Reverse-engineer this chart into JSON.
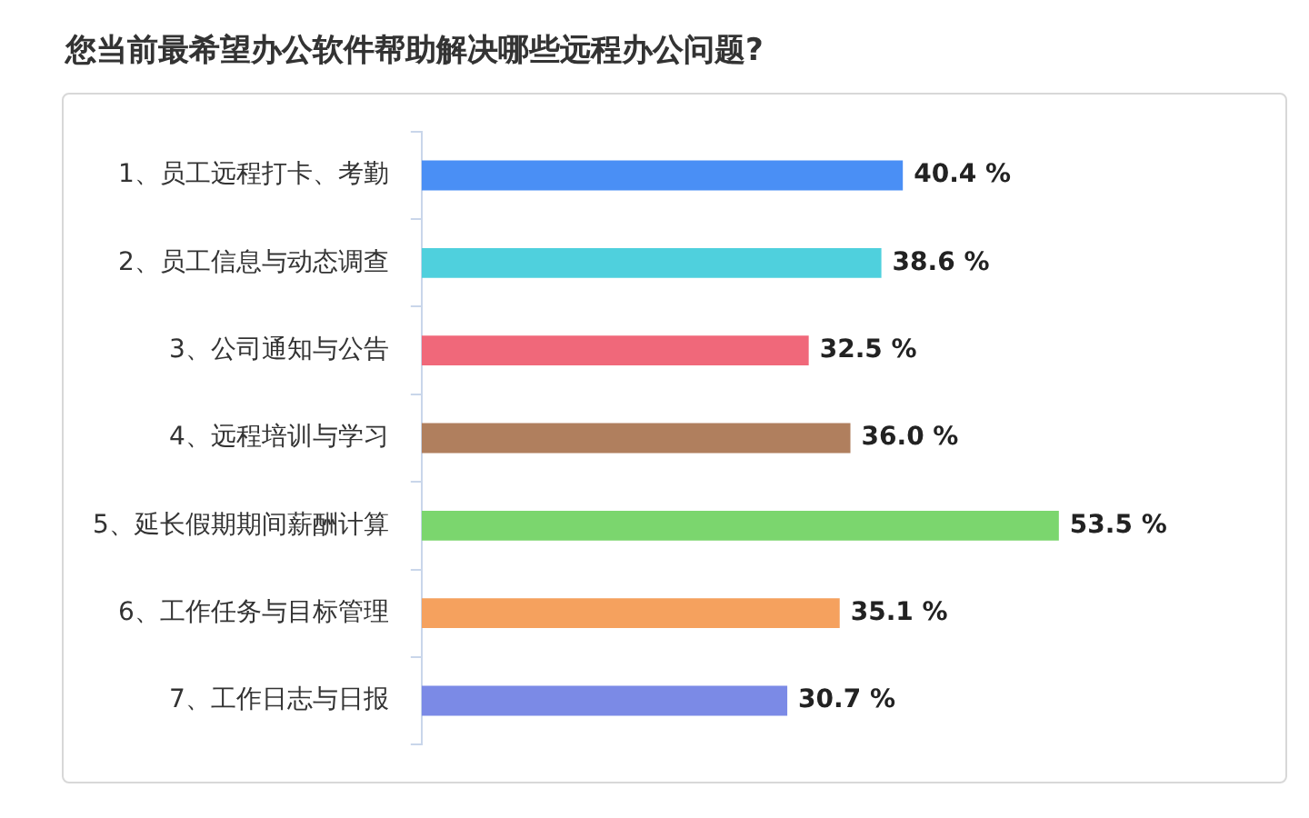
{
  "chart_data": {
    "type": "bar",
    "orientation": "horizontal",
    "title": "您当前最希望办公软件帮助解决哪些远程办公问题?",
    "categories": [
      "1、员工远程打卡、考勤",
      "2、员工信息与动态调查",
      "3、公司通知与公告",
      "4、远程培训与学习",
      "5、延长假期期间薪酬计算",
      "6、工作任务与目标管理",
      "7、工作日志与日报"
    ],
    "values": [
      40.4,
      38.6,
      32.5,
      36.0,
      53.5,
      35.1,
      30.7
    ],
    "value_labels": [
      "40.4 %",
      "38.6 %",
      "32.5 %",
      "36.0 %",
      "53.5 %",
      "35.1 %",
      "30.7 %"
    ],
    "colors": [
      "#4a8ff5",
      "#4fd0dd",
      "#f0687a",
      "#b07f5e",
      "#7bd66e",
      "#f5a15e",
      "#7b8ae6"
    ],
    "tick_labels": "y",
    "grid": false,
    "legend": false
  }
}
